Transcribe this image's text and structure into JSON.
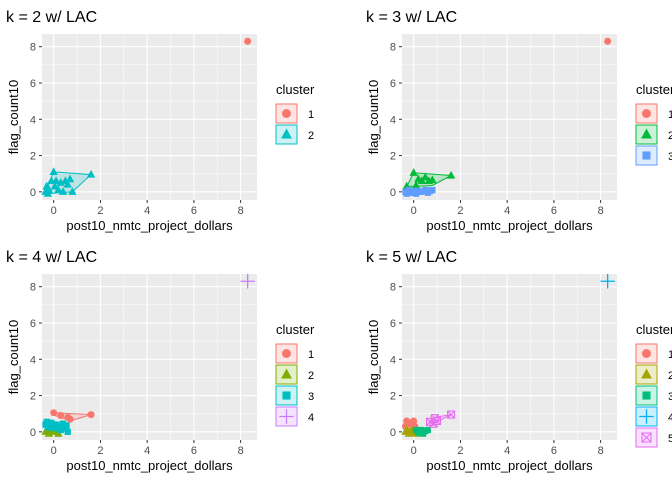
{
  "chart_data": [
    {
      "type": "scatter",
      "title": "k = 2 w/ LAC",
      "xlabel": "post10_nmtc_project_dollars",
      "ylabel": "flag_count10",
      "xlim": [
        -0.5,
        8.7
      ],
      "ylim": [
        -0.45,
        8.7
      ],
      "xticks": [
        0,
        2,
        4,
        6,
        8
      ],
      "yticks": [
        0,
        2,
        4,
        6,
        8
      ],
      "legend_title": "cluster",
      "series": [
        {
          "name": "1",
          "color": "#F8766D",
          "shape": "circle",
          "points": [
            [
              8.3,
              8.3
            ]
          ],
          "hull": []
        },
        {
          "name": "2",
          "color": "#00BFC4",
          "shape": "triangle",
          "points": [
            [
              -0.35,
              0
            ],
            [
              -0.3,
              0.3
            ],
            [
              -0.25,
              -0.1
            ],
            [
              -0.2,
              0.1
            ],
            [
              -0.1,
              0.6
            ],
            [
              0,
              1.1
            ],
            [
              0.05,
              0.3
            ],
            [
              0.1,
              0.6
            ],
            [
              0.2,
              0.1
            ],
            [
              0.3,
              0.5
            ],
            [
              0.4,
              0
            ],
            [
              0.5,
              0.6
            ],
            [
              0.6,
              0.4
            ],
            [
              0.7,
              0.7
            ],
            [
              1.6,
              0.95
            ],
            [
              0.8,
              0
            ]
          ],
          "hull": [
            [
              -0.35,
              0
            ],
            [
              0,
              1.1
            ],
            [
              1.6,
              0.95
            ],
            [
              0.8,
              0
            ],
            [
              -0.25,
              -0.1
            ]
          ]
        }
      ]
    },
    {
      "type": "scatter",
      "title": "k = 3 w/ LAC",
      "xlabel": "post10_nmtc_project_dollars",
      "ylabel": "flag_count10",
      "xlim": [
        -0.5,
        8.7
      ],
      "ylim": [
        -0.45,
        8.7
      ],
      "xticks": [
        0,
        2,
        4,
        6,
        8
      ],
      "yticks": [
        0,
        2,
        4,
        6,
        8
      ],
      "legend_title": "cluster",
      "series": [
        {
          "name": "1",
          "color": "#F8766D",
          "shape": "circle",
          "points": [
            [
              8.3,
              8.3
            ]
          ],
          "hull": []
        },
        {
          "name": "2",
          "color": "#00BA38",
          "shape": "triangle",
          "points": [
            [
              -0.3,
              0.3
            ],
            [
              0,
              1.05
            ],
            [
              0.2,
              0.7
            ],
            [
              0.35,
              0.6
            ],
            [
              0.5,
              0.8
            ],
            [
              0.65,
              0.6
            ],
            [
              0.8,
              0.65
            ],
            [
              1.6,
              0.9
            ],
            [
              0.1,
              0.35
            ]
          ],
          "hull": [
            [
              -0.3,
              0.3
            ],
            [
              0,
              1.05
            ],
            [
              1.6,
              0.9
            ],
            [
              0.8,
              0.35
            ],
            [
              0.1,
              0.3
            ]
          ]
        },
        {
          "name": "3",
          "color": "#619CFF",
          "shape": "square",
          "points": [
            [
              -0.35,
              0
            ],
            [
              -0.3,
              -0.1
            ],
            [
              -0.2,
              0.1
            ],
            [
              -0.1,
              -0.05
            ],
            [
              0,
              0.05
            ],
            [
              0.1,
              -0.1
            ],
            [
              0.2,
              0.05
            ],
            [
              0.3,
              0
            ],
            [
              0.5,
              0.1
            ],
            [
              0.6,
              -0.05
            ],
            [
              0.7,
              0.05
            ],
            [
              0.8,
              0.1
            ]
          ],
          "hull": [
            [
              -0.35,
              0
            ],
            [
              -0.3,
              0.1
            ],
            [
              0.8,
              0.15
            ],
            [
              0.8,
              -0.1
            ],
            [
              -0.3,
              -0.12
            ]
          ]
        }
      ]
    },
    {
      "type": "scatter",
      "title": "k = 4 w/ LAC",
      "xlabel": "post10_nmtc_project_dollars",
      "ylabel": "flag_count10",
      "xlim": [
        -0.5,
        8.7
      ],
      "ylim": [
        -0.45,
        8.7
      ],
      "xticks": [
        0,
        2,
        4,
        6,
        8
      ],
      "yticks": [
        0,
        2,
        4,
        6,
        8
      ],
      "legend_title": "cluster",
      "series": [
        {
          "name": "1",
          "color": "#F8766D",
          "shape": "circle",
          "points": [
            [
              0,
              1.05
            ],
            [
              0.3,
              0.9
            ],
            [
              0.6,
              0.8
            ],
            [
              0.7,
              0.7
            ],
            [
              1.6,
              0.95
            ]
          ],
          "hull": [
            [
              0,
              1.05
            ],
            [
              1.6,
              0.95
            ],
            [
              0.7,
              0.6
            ],
            [
              0.05,
              0.9
            ]
          ]
        },
        {
          "name": "2",
          "color": "#7CAE00",
          "shape": "triangle",
          "points": [
            [
              -0.35,
              0
            ],
            [
              -0.3,
              0.1
            ],
            [
              -0.2,
              -0.1
            ],
            [
              -0.1,
              0.15
            ],
            [
              0,
              0
            ],
            [
              0.1,
              0.1
            ],
            [
              0.2,
              -0.1
            ]
          ],
          "hull": [
            [
              -0.35,
              0
            ],
            [
              -0.2,
              0.2
            ],
            [
              0.2,
              0.1
            ],
            [
              0.2,
              -0.12
            ],
            [
              -0.3,
              -0.12
            ]
          ]
        },
        {
          "name": "3",
          "color": "#00BFC4",
          "shape": "square",
          "points": [
            [
              -0.35,
              0.4
            ],
            [
              -0.3,
              0.55
            ],
            [
              -0.25,
              0.25
            ],
            [
              -0.1,
              0.5
            ],
            [
              0,
              0.2
            ],
            [
              0.1,
              0.4
            ],
            [
              0.2,
              0.3
            ],
            [
              0.3,
              0.1
            ],
            [
              0.4,
              0.45
            ],
            [
              0.5,
              0.2
            ],
            [
              0.6,
              0
            ],
            [
              0.55,
              0.35
            ]
          ],
          "hull": [
            [
              -0.35,
              0.4
            ],
            [
              -0.3,
              0.6
            ],
            [
              0.4,
              0.5
            ],
            [
              0.6,
              0.35
            ],
            [
              0.6,
              0
            ],
            [
              -0.25,
              0.2
            ]
          ]
        },
        {
          "name": "4",
          "color": "#C77CFF",
          "shape": "plus",
          "points": [
            [
              8.3,
              8.3
            ]
          ],
          "hull": []
        }
      ]
    },
    {
      "type": "scatter",
      "title": "k = 5 w/ LAC",
      "xlabel": "post10_nmtc_project_dollars",
      "ylabel": "flag_count10",
      "xlim": [
        -0.5,
        8.7
      ],
      "ylim": [
        -0.45,
        8.7
      ],
      "xticks": [
        0,
        2,
        4,
        6,
        8
      ],
      "yticks": [
        0,
        2,
        4,
        6,
        8
      ],
      "legend_title": "cluster",
      "series": [
        {
          "name": "1",
          "color": "#F8766D",
          "shape": "circle",
          "points": [
            [
              -0.35,
              0.3
            ],
            [
              -0.3,
              0.6
            ],
            [
              -0.2,
              0.45
            ],
            [
              -0.1,
              0.5
            ],
            [
              0,
              0.6
            ],
            [
              0.05,
              0.3
            ]
          ],
          "hull": [
            [
              -0.35,
              0.3
            ],
            [
              -0.3,
              0.65
            ],
            [
              0.05,
              0.65
            ],
            [
              0.1,
              0.3
            ]
          ]
        },
        {
          "name": "2",
          "color": "#A3A500",
          "shape": "triangle",
          "points": [
            [
              -0.35,
              0
            ],
            [
              -0.3,
              0.1
            ],
            [
              -0.2,
              -0.1
            ],
            [
              -0.1,
              0.1
            ],
            [
              0,
              0
            ],
            [
              0.1,
              -0.1
            ]
          ],
          "hull": [
            [
              -0.35,
              0
            ],
            [
              -0.2,
              0.2
            ],
            [
              0.1,
              0.1
            ],
            [
              0.1,
              -0.12
            ],
            [
              -0.3,
              -0.12
            ]
          ]
        },
        {
          "name": "3",
          "color": "#00BF7D",
          "shape": "square",
          "points": [
            [
              0.1,
              0.1
            ],
            [
              0.2,
              -0.05
            ],
            [
              0.3,
              0.1
            ],
            [
              0.4,
              -0.1
            ],
            [
              0.5,
              0.05
            ],
            [
              0.6,
              0.1
            ]
          ],
          "hull": [
            [
              0.1,
              0.1
            ],
            [
              0.3,
              0.15
            ],
            [
              0.6,
              0.12
            ],
            [
              0.6,
              -0.1
            ],
            [
              0.2,
              -0.12
            ]
          ]
        },
        {
          "name": "4",
          "color": "#00B0F6",
          "shape": "plus",
          "points": [
            [
              8.3,
              8.3
            ]
          ],
          "hull": []
        },
        {
          "name": "5",
          "color": "#E76BF3",
          "shape": "squarex",
          "points": [
            [
              0.7,
              0.55
            ],
            [
              0.9,
              0.75
            ],
            [
              1.0,
              0.6
            ],
            [
              1.6,
              0.95
            ],
            [
              0.85,
              0.45
            ]
          ],
          "hull": [
            [
              0.7,
              0.55
            ],
            [
              0.9,
              0.8
            ],
            [
              1.6,
              0.95
            ],
            [
              0.85,
              0.45
            ]
          ]
        }
      ]
    }
  ]
}
